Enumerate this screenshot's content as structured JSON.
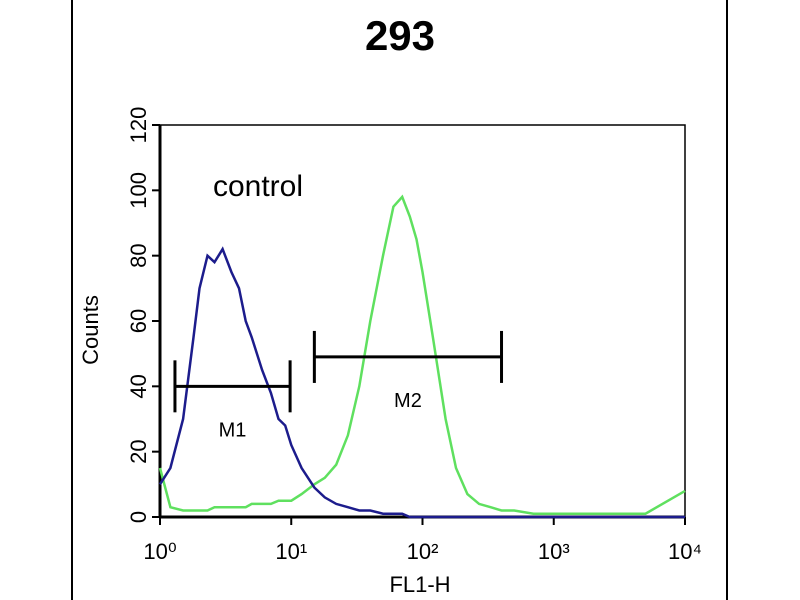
{
  "chart_data": {
    "type": "line",
    "title": "293",
    "annotation": "control",
    "x_label": "FL1-H",
    "y_label": "Counts",
    "log_x": true,
    "x": [
      1,
      1.2,
      1.5,
      1.8,
      2,
      2.3,
      2.6,
      3,
      3.5,
      4,
      4.5,
      5,
      6,
      7,
      8,
      9,
      10,
      12,
      15,
      18,
      22,
      27,
      33,
      40,
      50,
      60,
      70,
      80,
      90,
      100,
      120,
      150,
      180,
      220,
      270,
      330,
      400,
      500,
      700,
      1000,
      2000,
      5000,
      10000
    ],
    "series": [
      {
        "name": "control",
        "color": "#1c1c8c",
        "values": [
          10,
          15,
          30,
          55,
          70,
          80,
          78,
          82,
          75,
          70,
          60,
          55,
          45,
          38,
          30,
          28,
          22,
          15,
          9,
          6,
          4,
          3,
          2,
          2,
          1,
          1,
          1,
          0,
          0,
          0,
          0,
          0,
          0,
          0,
          0,
          0,
          0,
          0,
          0,
          0,
          0,
          0,
          0
        ]
      },
      {
        "color": "#5fe05f",
        "values": [
          15,
          3,
          2,
          2,
          2,
          2,
          3,
          3,
          3,
          3,
          3,
          4,
          4,
          4,
          5,
          5,
          5,
          7,
          10,
          12,
          16,
          25,
          40,
          60,
          80,
          95,
          98,
          92,
          85,
          75,
          55,
          30,
          15,
          7,
          4,
          3,
          2,
          2,
          1,
          1,
          1,
          1,
          8
        ]
      }
    ],
    "markers": [
      {
        "label": "M1",
        "range": [
          1.3,
          9.8
        ],
        "y": 40
      },
      {
        "label": "M2",
        "range": [
          15,
          400
        ],
        "y": 49
      }
    ],
    "xlim": [
      1,
      10000
    ],
    "xticks": [
      {
        "value": 1,
        "label": "10⁰"
      },
      {
        "value": 10,
        "label": "10¹"
      },
      {
        "value": 100,
        "label": "10²"
      },
      {
        "value": 1000,
        "label": "10³"
      },
      {
        "value": 10000,
        "label": "10⁴"
      }
    ],
    "ylim": [
      0,
      120
    ],
    "yticks": [
      0,
      20,
      40,
      60,
      80,
      100,
      120
    ]
  }
}
